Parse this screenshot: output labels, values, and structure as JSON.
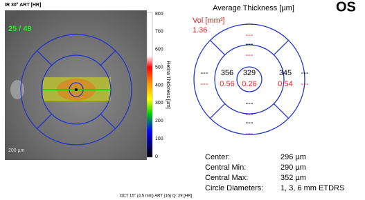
{
  "fundus": {
    "title": "IR 30° ART [HR]",
    "counter": "25 / 49",
    "scale_bar": "200 µm"
  },
  "color_scale": {
    "label": "Retina Thickness [µm]",
    "ticks": [
      "800",
      "700",
      "600",
      "500",
      "400",
      "300",
      "200",
      "100",
      "0"
    ]
  },
  "thickness_map": {
    "title": "Average Thickness [µm]",
    "eye": "OS",
    "volume_label": "Vol [mm³]",
    "total_volume": "1.36",
    "sectors": [
      {
        "thickness": "329",
        "volume": "0.26"
      },
      {
        "thickness": "---",
        "volume": "---"
      },
      {
        "thickness": "345",
        "volume": "0.54"
      },
      {
        "thickness": "---",
        "volume": "---"
      },
      {
        "thickness": "356",
        "volume": "0.56"
      },
      {
        "thickness": "---",
        "volume": "---"
      },
      {
        "thickness": "---",
        "volume": "---"
      },
      {
        "thickness": "---",
        "volume": "---"
      },
      {
        "thickness": "---",
        "volume": "---"
      }
    ]
  },
  "stats": [
    [
      "Center:",
      "296 µm"
    ],
    [
      "Central Min:",
      "290 µm"
    ],
    [
      "Central Max:",
      "352 µm"
    ],
    [
      "Circle Diameters:",
      "1, 3, 6 mm ETDRS"
    ]
  ],
  "footer": "OCT 15° (4.5 mm) ART (16) Q: 29 [HR]"
}
